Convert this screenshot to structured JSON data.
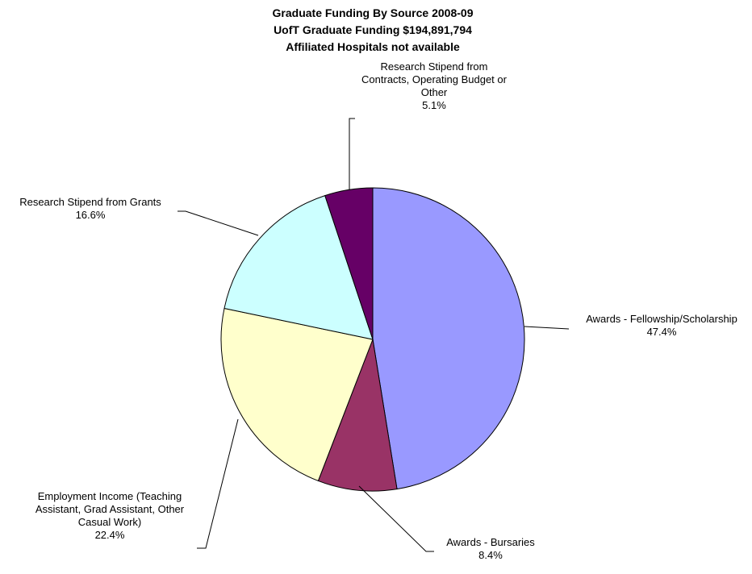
{
  "chart_data": {
    "type": "pie",
    "title_lines": [
      "Graduate Funding By Source 2008-09",
      "UofT Graduate Funding $194,891,794",
      "Affiliated Hospitals not available"
    ],
    "slices": [
      {
        "label_lines": [
          "Awards - Fellowship/Scholarship"
        ],
        "value": 47.4,
        "value_label": "47.4%",
        "color": "#9999FF"
      },
      {
        "label_lines": [
          "Awards - Bursaries"
        ],
        "value": 8.4,
        "value_label": "8.4%",
        "color": "#993366"
      },
      {
        "label_lines": [
          "Employment Income (Teaching",
          "Assistant, Grad Assistant, Other",
          "Casual Work)"
        ],
        "value": 22.4,
        "value_label": "22.4%",
        "color": "#FFFFCC"
      },
      {
        "label_lines": [
          "Research Stipend from Grants"
        ],
        "value": 16.6,
        "value_label": "16.6%",
        "color": "#CCFFFF"
      },
      {
        "label_lines": [
          "Research Stipend from",
          "Contracts, Operating Budget or",
          "Other"
        ],
        "value": 5.1,
        "value_label": "5.1%",
        "color": "#660066"
      }
    ],
    "legend": "none"
  }
}
